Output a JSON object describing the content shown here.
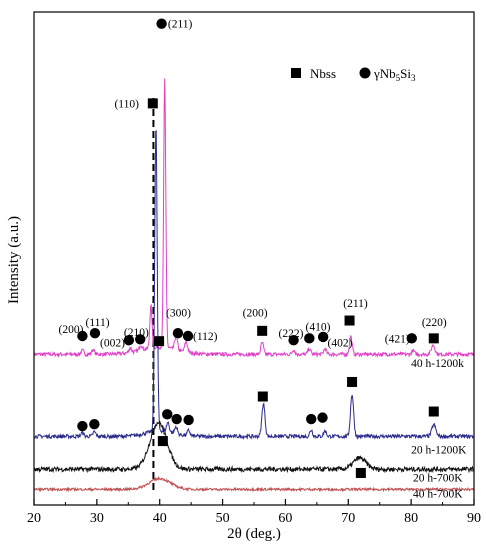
{
  "chart_data": {
    "type": "line",
    "title": "",
    "xlabel": "2θ (deg.)",
    "ylabel": "Intensity (a.u.)",
    "xlim": [
      20,
      90
    ],
    "xticks": [
      "20",
      "30",
      "40",
      "50",
      "60",
      "70",
      "80",
      "90"
    ],
    "grid": false,
    "legend_placement": "top-right",
    "legend": [
      {
        "marker": "square",
        "label": "Nbss"
      },
      {
        "marker": "circle",
        "label": "γNb",
        "sub1": "5",
        "mid": "Si",
        "sub2": "3"
      }
    ],
    "reference_line_x": 39.0,
    "series": [
      {
        "name": "40 h-1200k",
        "color": "#e040c8",
        "baseline": 0.3,
        "peaks": [
          {
            "x": 27.7,
            "h": 0.008,
            "w": 0.3
          },
          {
            "x": 29.4,
            "h": 0.01,
            "w": 0.3
          },
          {
            "x": 35.3,
            "h": 0.01,
            "w": 0.3
          },
          {
            "x": 37.0,
            "h": 0.012,
            "w": 0.3
          },
          {
            "x": 38.6,
            "h": 0.09,
            "w": 0.25
          },
          {
            "x": 40.8,
            "h": 0.57,
            "w": 0.24
          },
          {
            "x": 42.6,
            "h": 0.03,
            "w": 0.3
          },
          {
            "x": 44.2,
            "h": 0.022,
            "w": 0.3
          },
          {
            "x": 56.3,
            "h": 0.025,
            "w": 0.3
          },
          {
            "x": 61.3,
            "h": 0.01,
            "w": 0.3
          },
          {
            "x": 63.8,
            "h": 0.012,
            "w": 0.3
          },
          {
            "x": 66.3,
            "h": 0.012,
            "w": 0.3
          },
          {
            "x": 70.4,
            "h": 0.038,
            "w": 0.3
          },
          {
            "x": 80.3,
            "h": 0.008,
            "w": 0.3
          },
          {
            "x": 83.5,
            "h": 0.02,
            "w": 0.4
          }
        ],
        "broad": [
          {
            "x": 40.0,
            "h": 0.015,
            "w": 4.0
          }
        ],
        "noise": 0.004
      },
      {
        "name": "20 h-1200K",
        "color": "#2a2a8c",
        "baseline": 0.125,
        "peaks": [
          {
            "x": 27.7,
            "h": 0.008,
            "w": 0.3
          },
          {
            "x": 29.6,
            "h": 0.01,
            "w": 0.3
          },
          {
            "x": 39.4,
            "h": 0.65,
            "w": 0.28
          },
          {
            "x": 41.3,
            "h": 0.02,
            "w": 0.3
          },
          {
            "x": 42.6,
            "h": 0.015,
            "w": 0.3
          },
          {
            "x": 44.6,
            "h": 0.012,
            "w": 0.3
          },
          {
            "x": 56.5,
            "h": 0.07,
            "w": 0.35
          },
          {
            "x": 64.1,
            "h": 0.014,
            "w": 0.3
          },
          {
            "x": 66.3,
            "h": 0.012,
            "w": 0.3
          },
          {
            "x": 70.6,
            "h": 0.09,
            "w": 0.35
          },
          {
            "x": 83.6,
            "h": 0.025,
            "w": 0.45
          }
        ],
        "broad": [
          {
            "x": 40.0,
            "h": 0.012,
            "w": 3.0
          }
        ],
        "noise": 0.004
      },
      {
        "name": "20 h-700K",
        "color": "#111111",
        "baseline": 0.055,
        "peaks": [
          {
            "x": 71.8,
            "h": 0.024,
            "w": 1.4
          }
        ],
        "broad": [
          {
            "x": 39.8,
            "h": 0.1,
            "w": 1.9
          }
        ],
        "noise": 0.005
      },
      {
        "name": "40 h-700K",
        "color": "#c05050",
        "baseline": 0.012,
        "peaks": [],
        "broad": [
          {
            "x": 40.0,
            "h": 0.023,
            "w": 2.4
          }
        ],
        "noise": 0.0025
      }
    ],
    "annotations": [
      {
        "text": "(211)",
        "x": 41.3,
        "y": 1.005,
        "marker": "circle",
        "mx": 40.3,
        "my": 1.005
      },
      {
        "text": "(110)",
        "x": 32.8,
        "y": 0.835,
        "marker": "square",
        "mx": 38.9,
        "my": 0.835
      },
      {
        "text": "(200)",
        "x": 23.9,
        "y": 0.354,
        "marker": "circle",
        "mx": 27.7,
        "my": 0.339
      },
      {
        "text": "(111)",
        "x": 28.2,
        "y": 0.369,
        "marker": "circle",
        "mx": 29.7,
        "my": 0.345
      },
      {
        "text": "(002)",
        "x": 30.5,
        "y": 0.325,
        "marker": "circle",
        "mx": 35.1,
        "my": 0.33
      },
      {
        "text": "(210)",
        "x": 34.3,
        "y": 0.348,
        "marker": "circle",
        "mx": 36.9,
        "my": 0.332
      },
      {
        "text": "(300)",
        "x": 41.0,
        "y": 0.389,
        "marker": "circle",
        "mx": 42.9,
        "my": 0.345
      },
      {
        "text": "(112)",
        "x": 45.3,
        "y": 0.339,
        "marker": "circle",
        "mx": 44.5,
        "my": 0.339
      },
      {
        "text": "(200)",
        "x": 53.2,
        "y": 0.389,
        "marker": "square",
        "mx": 56.3,
        "my": 0.35
      },
      {
        "text": "(222)",
        "x": 58.9,
        "y": 0.345,
        "marker": "circle",
        "mx": 61.3,
        "my": 0.33
      },
      {
        "text": "(410)",
        "x": 63.2,
        "y": 0.359,
        "marker": "circle",
        "mx": 63.8,
        "my": 0.334
      },
      {
        "text": "(402)",
        "x": 66.7,
        "y": 0.325,
        "marker": "circle",
        "mx": 66.0,
        "my": 0.337
      },
      {
        "text": "(211)",
        "x": 69.2,
        "y": 0.409,
        "marker": "square",
        "mx": 70.2,
        "my": 0.372
      },
      {
        "text": "(421)",
        "x": 75.8,
        "y": 0.334,
        "marker": "circle",
        "mx": 80.1,
        "my": 0.334
      },
      {
        "text": "(220)",
        "x": 81.7,
        "y": 0.369,
        "marker": "square",
        "mx": 83.6,
        "my": 0.334
      },
      {
        "text": "",
        "x": 0,
        "y": 0,
        "marker": "square",
        "mx": 39.9,
        "my": 0.328
      },
      {
        "text": "",
        "x": 0,
        "y": 0,
        "marker": "circle",
        "mx": 27.7,
        "my": 0.147
      },
      {
        "text": "",
        "x": 0,
        "y": 0,
        "marker": "circle",
        "mx": 29.6,
        "my": 0.151
      },
      {
        "text": "",
        "x": 0,
        "y": 0,
        "marker": "circle",
        "mx": 41.2,
        "my": 0.172
      },
      {
        "text": "",
        "x": 0,
        "y": 0,
        "marker": "circle",
        "mx": 42.7,
        "my": 0.162
      },
      {
        "text": "",
        "x": 0,
        "y": 0,
        "marker": "circle",
        "mx": 44.6,
        "my": 0.16
      },
      {
        "text": "",
        "x": 0,
        "y": 0,
        "marker": "square",
        "mx": 56.4,
        "my": 0.21
      },
      {
        "text": "",
        "x": 0,
        "y": 0,
        "marker": "circle",
        "mx": 64.1,
        "my": 0.162
      },
      {
        "text": "",
        "x": 0,
        "y": 0,
        "marker": "circle",
        "mx": 65.9,
        "my": 0.165
      },
      {
        "text": "",
        "x": 0,
        "y": 0,
        "marker": "square",
        "mx": 70.6,
        "my": 0.241
      },
      {
        "text": "",
        "x": 0,
        "y": 0,
        "marker": "square",
        "mx": 83.6,
        "my": 0.178
      },
      {
        "text": "",
        "x": 0,
        "y": 0,
        "marker": "square",
        "mx": 40.5,
        "my": 0.115
      },
      {
        "text": "",
        "x": 0,
        "y": 0,
        "marker": "square",
        "mx": 72.0,
        "my": 0.047
      }
    ],
    "series_labels": [
      {
        "text": "40 h-1200k",
        "x": 80.0,
        "y": 0.281
      },
      {
        "text": "20 h-1200K",
        "x": 80.0,
        "y": 0.097
      },
      {
        "text": "20 h-700K",
        "x": 80.3,
        "y": 0.037
      },
      {
        "text": "40 h-700K",
        "x": 80.3,
        "y": 0.003
      }
    ]
  }
}
